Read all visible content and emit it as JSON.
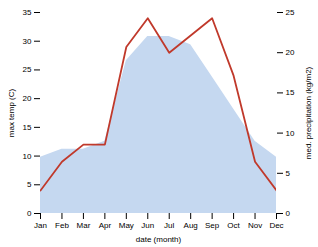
{
  "chart_data": {
    "type": "line",
    "categories": [
      "Jan",
      "Feb",
      "Mar",
      "Apr",
      "May",
      "Jun",
      "Jul",
      "Aug",
      "Sep",
      "Oct",
      "Nov",
      "Dec"
    ],
    "series": [
      {
        "type": "area",
        "axis": "y2",
        "color": "#c5d8f0",
        "values": [
          7,
          8,
          8,
          9,
          19,
          22,
          22,
          21,
          17,
          13,
          9,
          7
        ]
      },
      {
        "type": "line",
        "color": "#c0392b",
        "values": [
          4,
          9,
          12,
          12,
          29,
          34,
          28,
          31,
          34,
          24,
          9,
          4
        ]
      }
    ],
    "xlabel": "date (month)",
    "ylabel": "max temp (C)",
    "y2label": "med. precipitation (kg/m2)",
    "ylim": [
      0,
      35
    ],
    "yticks": [
      0,
      5,
      10,
      15,
      20,
      25,
      30,
      35
    ],
    "y2lim": [
      0,
      25
    ],
    "y2ticks": [
      0,
      5,
      10,
      15,
      20,
      25
    ],
    "grid": false
  }
}
